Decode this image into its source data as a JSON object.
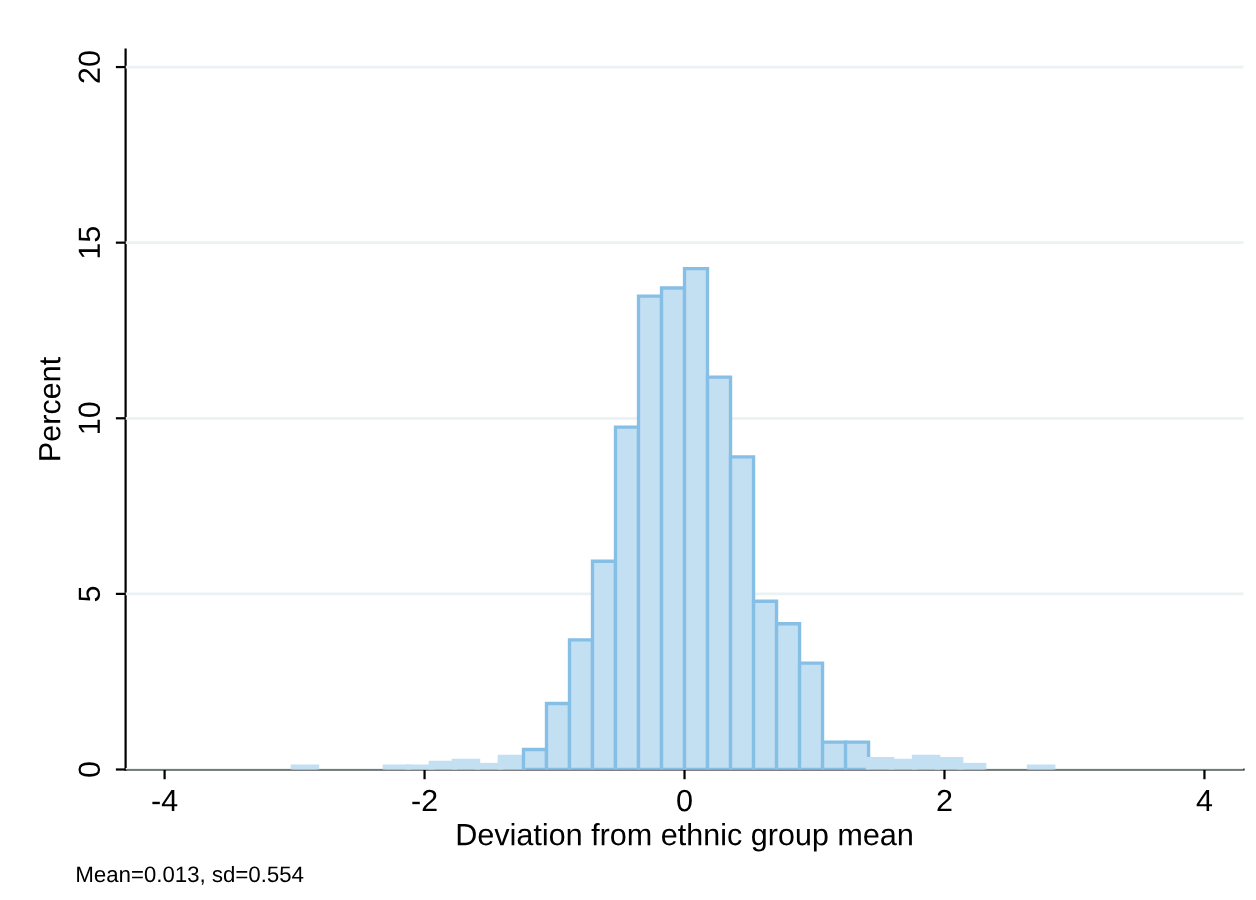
{
  "chart_data": {
    "type": "histogram",
    "xlabel": "Deviation from ethnic group mean",
    "ylabel": "Percent",
    "bins": [
      -3.009,
      -2.832,
      -2.655,
      -2.478,
      -2.301,
      -2.124,
      -1.947,
      -1.77,
      -1.593,
      -1.416,
      -1.239,
      -1.062,
      -0.885,
      -0.708,
      -0.531,
      -0.354,
      -0.177,
      0,
      0.177,
      0.354,
      0.531,
      0.708,
      0.885,
      1.062,
      1.239,
      1.416,
      1.593,
      1.77,
      1.947,
      2.124,
      2.301,
      2.478,
      2.655,
      2.832
    ],
    "values": [
      0.06,
      0,
      0,
      0,
      0.06,
      0.06,
      0.17,
      0.23,
      0.11,
      0.34,
      0.57,
      1.88,
      3.69,
      5.93,
      9.75,
      13.48,
      13.71,
      14.26,
      11.17,
      8.9,
      4.79,
      4.15,
      3.03,
      0.78,
      0.78,
      0.28,
      0.23,
      0.34,
      0.28,
      0.11,
      0,
      0,
      0.06
    ],
    "color": "#c3dff2",
    "xlim": [
      -4.3,
      4.3
    ],
    "xticks": [
      -4,
      -2,
      0,
      2,
      4
    ],
    "ylim": [
      0,
      20.5
    ],
    "yticks": [
      0,
      5,
      10,
      15,
      20
    ],
    "grid": "y",
    "legend": false,
    "annotations": [
      "Mean=0.013, sd=0.554"
    ]
  }
}
